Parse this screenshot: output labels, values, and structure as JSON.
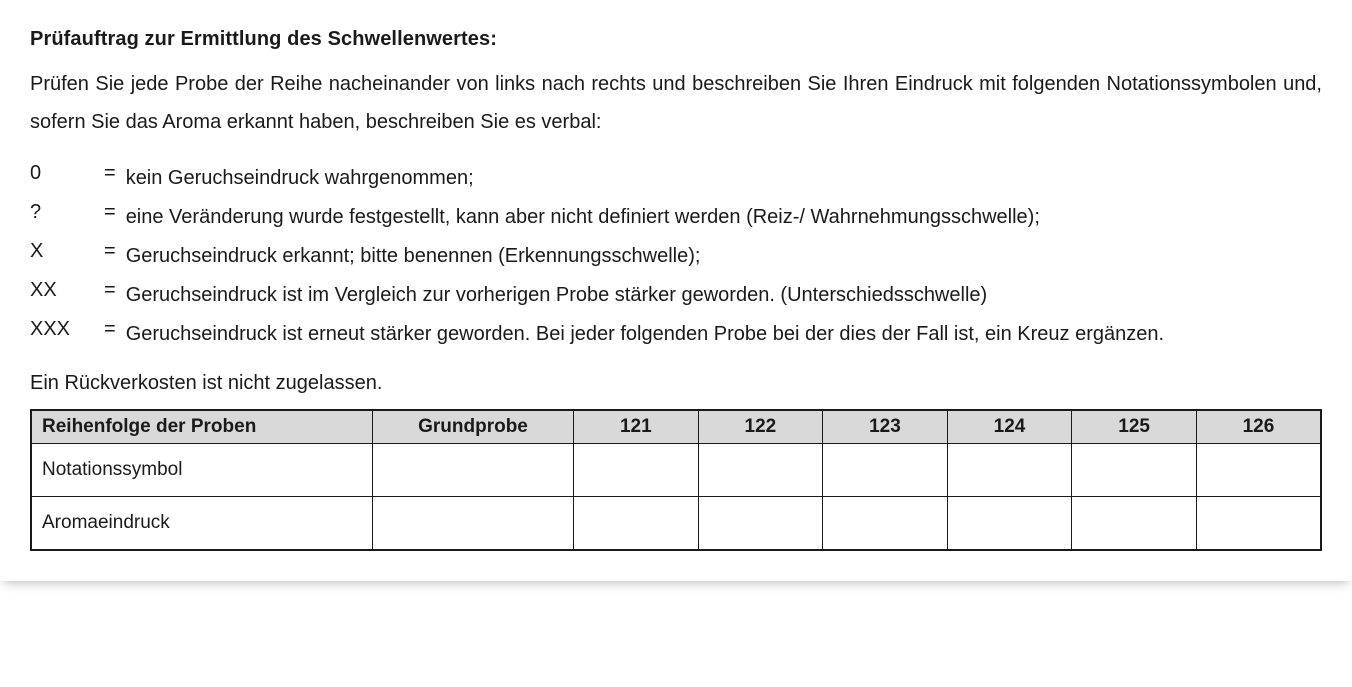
{
  "heading": "Prüfauftrag zur Ermittlung des Schwellenwertes:",
  "intro": "Prüfen Sie jede Probe der Reihe nacheinander von links nach rechts und beschreiben Sie Ihren Eindruck mit folgenden Notationssymbolen und, sofern Sie das Aroma erkannt haben, beschreiben Sie es verbal:",
  "legend": [
    {
      "symbol": "0",
      "eq": "=",
      "desc": "kein Geruchseindruck wahrgenommen;"
    },
    {
      "symbol": "?",
      "eq": "=",
      "desc": "eine Veränderung wurde festgestellt, kann aber nicht definiert werden (Reiz-/ Wahrnehmungsschwelle);"
    },
    {
      "symbol": "X",
      "eq": "=",
      "desc": "Geruchseindruck erkannt; bitte benennen (Erkennungsschwelle);"
    },
    {
      "symbol": "XX",
      "eq": "=",
      "desc": "Geruchseindruck ist im Vergleich zur vorherigen Probe stärker geworden. (Unterschiedsschwelle)"
    },
    {
      "symbol": "XXX",
      "eq": "=",
      "desc": "Geruchseindruck ist erneut stärker geworden. Bei jeder folgenden Probe bei der dies der Fall ist, ein Kreuz ergänzen."
    }
  ],
  "note": "Ein Rückverkosten ist nicht zugelassen.",
  "table": {
    "header_rowlabel": "Reihenfolge der Proben",
    "columns": [
      "Grundprobe",
      "121",
      "122",
      "123",
      "124",
      "125",
      "126"
    ],
    "rows": [
      {
        "label": "Notationssymbol",
        "cells": [
          "",
          "",
          "",
          "",
          "",
          "",
          ""
        ]
      },
      {
        "label": "Aromaeindruck",
        "cells": [
          "",
          "",
          "",
          "",
          "",
          "",
          ""
        ]
      }
    ],
    "header_bg": "#d9d9d9",
    "border_color": "#1a1a1a"
  }
}
